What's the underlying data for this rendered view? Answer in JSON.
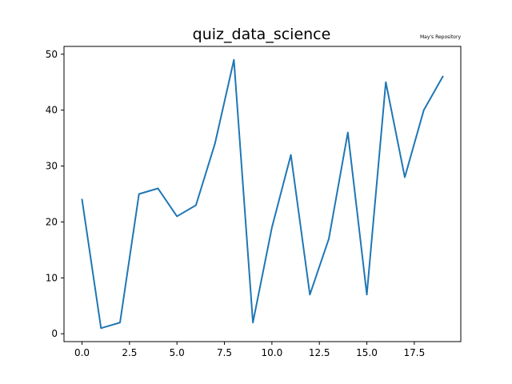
{
  "chart_data": {
    "type": "line",
    "title": "quiz_data_science",
    "corner_note": "May's Repository",
    "xlabel": "",
    "ylabel": "",
    "x": [
      0,
      1,
      2,
      3,
      4,
      5,
      6,
      7,
      8,
      9,
      10,
      11,
      12,
      13,
      14,
      15,
      16,
      17,
      18,
      19
    ],
    "series": [
      {
        "values": [
          24,
          1,
          2,
          25,
          26,
          21,
          23,
          34,
          49,
          2,
          19,
          32,
          7,
          17,
          36,
          7,
          45,
          28,
          40,
          46
        ],
        "color": "#1f77b4"
      }
    ],
    "xlim": [
      -0.95,
      19.95
    ],
    "ylim": [
      -1.4,
      51.4
    ],
    "xticks": [
      {
        "value": 0,
        "label": "0.0"
      },
      {
        "value": 2.5,
        "label": "2.5"
      },
      {
        "value": 5,
        "label": "5.0"
      },
      {
        "value": 7.5,
        "label": "7.5"
      },
      {
        "value": 10,
        "label": "10.0"
      },
      {
        "value": 12.5,
        "label": "12.5"
      },
      {
        "value": 15,
        "label": "15.0"
      },
      {
        "value": 17.5,
        "label": "17.5"
      }
    ],
    "yticks": [
      {
        "value": 0,
        "label": "0"
      },
      {
        "value": 10,
        "label": "10"
      },
      {
        "value": 20,
        "label": "20"
      },
      {
        "value": 30,
        "label": "30"
      },
      {
        "value": 40,
        "label": "40"
      },
      {
        "value": 50,
        "label": "50"
      }
    ],
    "grid": false,
    "legend": false
  }
}
